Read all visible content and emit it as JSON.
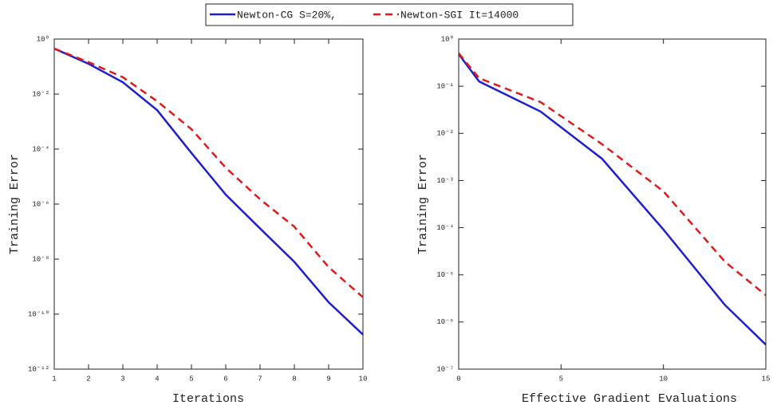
{
  "chart_data": [
    {
      "type": "line",
      "x_label": "Iterations",
      "y_label": "Training Error",
      "x": [
        1,
        2,
        3,
        4,
        5,
        6,
        7,
        8,
        9,
        10
      ],
      "xlim": [
        1,
        10
      ],
      "xticks": [
        1,
        2,
        3,
        4,
        5,
        6,
        7,
        8,
        9,
        10
      ],
      "ylim": [
        1e-12,
        1
      ],
      "y_scale": "log",
      "yticks": [
        {
          "value": 1,
          "label": "10⁰"
        },
        {
          "value": 0.01,
          "label": "10⁻²"
        },
        {
          "value": 0.0001,
          "label": "10⁻⁴"
        },
        {
          "value": 1e-06,
          "label": "10⁻⁶"
        },
        {
          "value": 1e-08,
          "label": "10⁻⁸"
        },
        {
          "value": 1e-10,
          "label": "10⁻¹⁰"
        },
        {
          "value": 1e-12,
          "label": "10⁻¹²"
        }
      ],
      "series": [
        {
          "name": "Newton-CG S=20%,",
          "color": "#1f1fcc",
          "linestyle": "solid",
          "values": [
            0.45,
            0.126,
            0.027,
            0.0026,
            7.2e-05,
            2.2e-06,
            1.3e-07,
            7.9e-09,
            2.7e-10,
            1.8e-11
          ]
        },
        {
          "name": "Newton-SGI It=14000",
          "color": "#e01a1a",
          "linestyle": "dashed",
          "values": [
            0.45,
            0.145,
            0.041,
            0.0055,
            0.00053,
            2.1e-05,
            1.5e-06,
            1.5e-07,
            5.1e-09,
            4.1e-10
          ]
        }
      ]
    },
    {
      "type": "line",
      "x_label": "Effective Gradient Evaluations",
      "y_label": "Training Error",
      "x": [
        0,
        1,
        4,
        7,
        10,
        13,
        15
      ],
      "xlim": [
        0,
        15
      ],
      "xticks": [
        0,
        5,
        10,
        15
      ],
      "ylim": [
        1e-07,
        1
      ],
      "y_scale": "log",
      "yticks": [
        {
          "value": 1,
          "label": "10⁰"
        },
        {
          "value": 0.1,
          "label": "10⁻¹"
        },
        {
          "value": 0.01,
          "label": "10⁻²"
        },
        {
          "value": 0.001,
          "label": "10⁻³"
        },
        {
          "value": 0.0001,
          "label": "10⁻⁴"
        },
        {
          "value": 1e-05,
          "label": "10⁻⁵"
        },
        {
          "value": 1e-06,
          "label": "10⁻⁶"
        },
        {
          "value": 1e-07,
          "label": "10⁻⁷"
        }
      ],
      "series": [
        {
          "color": "#1f1fcc",
          "linestyle": "solid",
          "values": [
            0.48,
            0.126,
            0.029,
            0.0029,
            9.1e-05,
            2.3e-06,
            3.3e-07
          ]
        },
        {
          "color": "#e01a1a",
          "linestyle": "dashed",
          "values": [
            0.5,
            0.148,
            0.046,
            0.0059,
            0.00059,
            1.9e-05,
            3.7e-06
          ]
        }
      ]
    }
  ]
}
